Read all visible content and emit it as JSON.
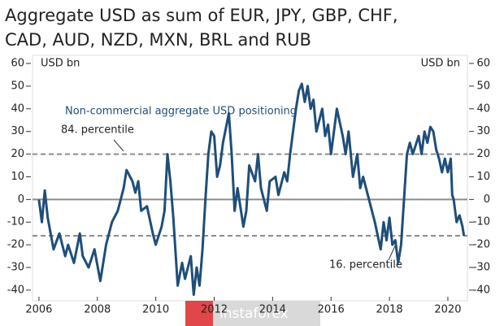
{
  "chart_data": {
    "type": "line",
    "title": [
      "Aggregate USD as sum of EUR, JPY, GBP, CHF,",
      "CAD, AUD, NZD, MXN, BRL and RUB"
    ],
    "y_label": "USD bn",
    "y2_label": "USD bn",
    "watermark": "instaforex",
    "xlim": [
      2005.78,
      2020.67
    ],
    "xticks": [
      2006,
      2008,
      2010,
      2012,
      2014,
      2016,
      2018,
      2020
    ],
    "ylim": [
      -44.7,
      63.6
    ],
    "yticks": [
      -40,
      -30,
      -20,
      -10,
      0,
      10,
      20,
      30,
      40,
      50,
      60
    ],
    "y2lim": [
      -44.7,
      63.6
    ],
    "y2ticks": [
      -40,
      -30,
      -20,
      -10,
      0,
      10,
      20,
      30,
      40,
      50,
      60
    ],
    "reference_lines": [
      {
        "value": 20,
        "label": "84. percentile"
      },
      {
        "value": -16,
        "label": "16. percentile"
      }
    ],
    "x": [
      2006.0,
      2006.1,
      2006.2,
      2006.3,
      2006.5,
      2006.7,
      2006.9,
      2007.0,
      2007.2,
      2007.4,
      2007.5,
      2007.7,
      2007.9,
      2008.1,
      2008.3,
      2008.5,
      2008.7,
      2008.9,
      2009.0,
      2009.2,
      2009.3,
      2009.4,
      2009.5,
      2009.7,
      2009.9,
      2010.0,
      2010.2,
      2010.3,
      2010.4,
      2010.5,
      2010.6,
      2010.75,
      2010.9,
      2011.0,
      2011.2,
      2011.3,
      2011.4,
      2011.5,
      2011.6,
      2011.7,
      2011.8,
      2011.9,
      2012.0,
      2012.1,
      2012.2,
      2012.3,
      2012.5,
      2012.6,
      2012.7,
      2012.8,
      2013.0,
      2013.1,
      2013.2,
      2013.4,
      2013.5,
      2013.6,
      2013.8,
      2013.9,
      2014.1,
      2014.2,
      2014.4,
      2014.5,
      2014.6,
      2014.7,
      2014.8,
      2014.9,
      2015.0,
      2015.1,
      2015.2,
      2015.3,
      2015.4,
      2015.5,
      2015.6,
      2015.7,
      2015.8,
      2015.9,
      2016.0,
      2016.1,
      2016.2,
      2016.4,
      2016.5,
      2016.6,
      2016.75,
      2016.9,
      2017.0,
      2017.1,
      2017.3,
      2017.5,
      2017.6,
      2017.7,
      2017.8,
      2017.9,
      2018.0,
      2018.1,
      2018.2,
      2018.3,
      2018.4,
      2018.5,
      2018.6,
      2018.7,
      2018.8,
      2019.0,
      2019.1,
      2019.2,
      2019.3,
      2019.4,
      2019.5,
      2019.6,
      2019.7,
      2019.8,
      2019.9,
      2020.0,
      2020.1,
      2020.15,
      2020.2,
      2020.3,
      2020.4,
      2020.5,
      2020.55
    ],
    "series": [
      {
        "name": "Non-commercial aggregate USD positioning",
        "color": "#1f4e79",
        "values": [
          0,
          -10,
          4,
          -8,
          -22,
          -15,
          -25,
          -20,
          -28,
          -15,
          -25,
          -30,
          -22,
          -36,
          -20,
          -10,
          -5,
          5,
          13,
          8,
          3,
          8,
          -5,
          -3,
          -15,
          -20,
          -12,
          -5,
          20,
          8,
          -8,
          -38,
          -28,
          -35,
          -25,
          -42,
          -30,
          -38,
          -22,
          0,
          20,
          30,
          28,
          10,
          15,
          25,
          38,
          20,
          -5,
          5,
          -12,
          -5,
          15,
          8,
          20,
          5,
          -5,
          8,
          10,
          2,
          12,
          8,
          20,
          30,
          40,
          48,
          51,
          43,
          50,
          40,
          44,
          30,
          35,
          40,
          28,
          33,
          20,
          30,
          40,
          28,
          20,
          30,
          10,
          20,
          5,
          10,
          0,
          -10,
          -16,
          -22,
          -10,
          -18,
          -8,
          -20,
          -18,
          -28,
          -20,
          0,
          20,
          25,
          20,
          28,
          20,
          30,
          25,
          32,
          30,
          22,
          18,
          12,
          18,
          12,
          18,
          2,
          0,
          -10,
          -7,
          -12,
          -16
        ]
      }
    ]
  }
}
